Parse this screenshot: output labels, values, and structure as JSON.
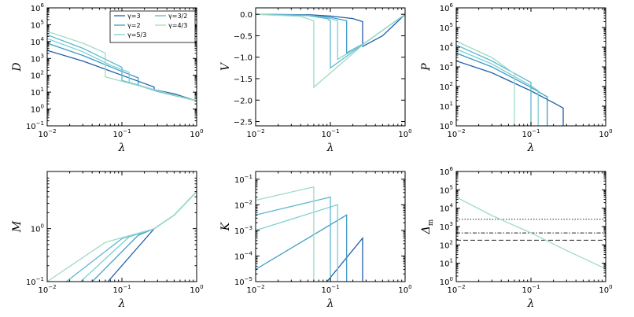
{
  "chart_data": [
    {
      "type": "line",
      "id": "D",
      "xlog": true,
      "ylog": true,
      "xlabel": "λ",
      "ylabel": "D",
      "xlim": [
        0.01,
        1
      ],
      "ylim": [
        0.1,
        1000000
      ],
      "xticks": [
        "10^-2",
        "10^-1",
        "10^0"
      ],
      "yticks": [
        "10^-1",
        "10^0",
        "10^1",
        "10^2",
        "10^3",
        "10^4",
        "10^5",
        "10^6"
      ],
      "legend": {
        "position": "top-right",
        "entries": [
          {
            "label": "γ=3",
            "color": "#1f5fa8"
          },
          {
            "label": "γ=3/2",
            "color": "#5fb7cf"
          },
          {
            "label": "γ=2",
            "color": "#3f9cc7"
          },
          {
            "label": "γ=4/3",
            "color": "#9fdcc4"
          },
          {
            "label": "γ=5/3",
            "color": "#7dcfd0"
          }
        ]
      },
      "series": [
        {
          "label": "γ=3",
          "color": "#1f5fa8",
          "x": [
            0.01,
            0.03,
            0.1,
            0.27,
            0.27,
            0.5,
            1
          ],
          "y": [
            3000,
            700,
            100,
            20,
            14,
            8,
            3
          ]
        },
        {
          "label": "γ=2",
          "color": "#3f9cc7",
          "x": [
            0.01,
            0.03,
            0.08,
            0.165,
            0.165,
            0.3,
            1
          ],
          "y": [
            8000,
            1500,
            250,
            70,
            25,
            11,
            3
          ]
        },
        {
          "label": "γ=5/3",
          "color": "#7dcfd0",
          "x": [
            0.01,
            0.03,
            0.07,
            0.125,
            0.125,
            0.3,
            1
          ],
          "y": [
            15000,
            2500,
            400,
            150,
            38,
            12,
            3
          ]
        },
        {
          "label": "γ=3/2",
          "color": "#5fb7cf",
          "x": [
            0.01,
            0.03,
            0.06,
            0.1,
            0.1,
            0.3,
            1
          ],
          "y": [
            25000,
            4000,
            900,
            300,
            50,
            12,
            3
          ]
        },
        {
          "label": "γ=4/3",
          "color": "#9fdcc4",
          "x": [
            0.01,
            0.03,
            0.055,
            0.06,
            0.06,
            0.3,
            1
          ],
          "y": [
            40000,
            8000,
            2500,
            2000,
            80,
            12,
            3
          ]
        }
      ]
    },
    {
      "type": "line",
      "id": "V",
      "xlog": true,
      "ylog": false,
      "xlabel": "λ",
      "ylabel": "V",
      "xlim": [
        0.01,
        1
      ],
      "ylim": [
        -2.6,
        0.15
      ],
      "xticks": [
        "10^-2",
        "10^-1",
        "10^0"
      ],
      "yticks": [
        "0.0",
        "−0.5",
        "−1.0",
        "−1.5",
        "−2.0",
        "−2.5"
      ],
      "series": [
        {
          "label": "γ=3",
          "color": "#1f5fa8",
          "x": [
            0.01,
            0.05,
            0.1,
            0.2,
            0.27,
            0.27,
            0.5,
            1
          ],
          "y": [
            0,
            -0.01,
            -0.04,
            -0.1,
            -0.17,
            -0.75,
            -0.5,
            0
          ]
        },
        {
          "label": "γ=2",
          "color": "#3f9cc7",
          "x": [
            0.01,
            0.05,
            0.1,
            0.165,
            0.165,
            0.3,
            1
          ],
          "y": [
            0,
            -0.02,
            -0.07,
            -0.15,
            -0.9,
            -0.65,
            0
          ]
        },
        {
          "label": "γ=5/3",
          "color": "#7dcfd0",
          "x": [
            0.01,
            0.05,
            0.1,
            0.125,
            0.125,
            0.3,
            1
          ],
          "y": [
            0,
            -0.02,
            -0.1,
            -0.15,
            -1.05,
            -0.65,
            0
          ]
        },
        {
          "label": "γ=3/2",
          "color": "#5fb7cf",
          "x": [
            0.01,
            0.05,
            0.09,
            0.1,
            0.1,
            0.3,
            1
          ],
          "y": [
            0,
            -0.03,
            -0.1,
            -0.15,
            -1.25,
            -0.65,
            0
          ]
        },
        {
          "label": "γ=4/3",
          "color": "#9fdcc4",
          "x": [
            0.01,
            0.04,
            0.06,
            0.06,
            0.3,
            1
          ],
          "y": [
            0,
            -0.05,
            -0.15,
            -1.7,
            -0.65,
            0
          ]
        }
      ]
    },
    {
      "type": "line",
      "id": "P",
      "xlog": true,
      "ylog": true,
      "xlabel": "λ",
      "ylabel": "P",
      "xlim": [
        0.01,
        1
      ],
      "ylim": [
        1,
        1000000
      ],
      "xticks": [
        "10^-2",
        "10^-1",
        "10^0"
      ],
      "yticks": [
        "10^0",
        "10^1",
        "10^2",
        "10^3",
        "10^4",
        "10^5",
        "10^6"
      ],
      "series": [
        {
          "label": "γ=3",
          "color": "#1f5fa8",
          "x": [
            0.01,
            0.03,
            0.1,
            0.2,
            0.27,
            0.27
          ],
          "y": [
            2000,
            500,
            60,
            15,
            8,
            1
          ]
        },
        {
          "label": "γ=2",
          "color": "#3f9cc7",
          "x": [
            0.01,
            0.03,
            0.1,
            0.165,
            0.165
          ],
          "y": [
            5000,
            1000,
            90,
            30,
            1
          ]
        },
        {
          "label": "γ=5/3",
          "color": "#7dcfd0",
          "x": [
            0.01,
            0.03,
            0.1,
            0.125,
            0.125
          ],
          "y": [
            8000,
            1400,
            110,
            60,
            1
          ]
        },
        {
          "label": "γ=3/2",
          "color": "#5fb7cf",
          "x": [
            0.01,
            0.03,
            0.1,
            0.1
          ],
          "y": [
            13000,
            2000,
            160,
            1
          ]
        },
        {
          "label": "γ=4/3",
          "color": "#9fdcc4",
          "x": [
            0.01,
            0.03,
            0.06,
            0.06
          ],
          "y": [
            20000,
            3000,
            450,
            1
          ]
        }
      ]
    },
    {
      "type": "line",
      "id": "M",
      "xlog": true,
      "ylog": true,
      "xlabel": "λ",
      "ylabel": "M",
      "xlim": [
        0.01,
        1
      ],
      "ylim": [
        0.1,
        12
      ],
      "xticks": [
        "10^-2",
        "10^-1",
        "10^0"
      ],
      "yticks": [
        "10^-1",
        "10^0"
      ],
      "series": [
        {
          "label": "γ=3",
          "color": "#1f5fa8",
          "x": [
            0.065,
            0.27,
            0.5,
            1
          ],
          "y": [
            0.1,
            1,
            1.8,
            5
          ]
        },
        {
          "label": "γ=2",
          "color": "#3f9cc7",
          "x": [
            0.04,
            0.165,
            0.27,
            0.5,
            1
          ],
          "y": [
            0.1,
            0.75,
            1,
            1.8,
            5
          ]
        },
        {
          "label": "γ=5/3",
          "color": "#7dcfd0",
          "x": [
            0.028,
            0.125,
            0.27,
            0.5,
            1
          ],
          "y": [
            0.1,
            0.7,
            1,
            1.8,
            5
          ]
        },
        {
          "label": "γ=3/2",
          "color": "#5fb7cf",
          "x": [
            0.018,
            0.1,
            0.27,
            0.5,
            1
          ],
          "y": [
            0.1,
            0.65,
            1,
            1.8,
            5
          ]
        },
        {
          "label": "γ=4/3",
          "color": "#9fdcc4",
          "x": [
            0.01,
            0.06,
            0.27,
            0.5,
            1
          ],
          "y": [
            0.1,
            0.55,
            1,
            1.8,
            5
          ]
        }
      ]
    },
    {
      "type": "line",
      "id": "K",
      "xlog": true,
      "ylog": true,
      "xlabel": "λ",
      "ylabel": "K",
      "xlim": [
        0.01,
        1
      ],
      "ylim": [
        1e-05,
        0.2
      ],
      "xticks": [
        "10^-2",
        "10^-1",
        "10^0"
      ],
      "yticks": [
        "10^-5",
        "10^-4",
        "10^-3",
        "10^-2",
        "10^-1"
      ],
      "series": [
        {
          "label": "γ=3",
          "color": "#1f5fa8",
          "x": [
            0.09,
            0.27,
            0.27
          ],
          "y": [
            1e-05,
            0.0005,
            1e-05
          ]
        },
        {
          "label": "γ=2",
          "color": "#3f9cc7",
          "x": [
            0.01,
            0.165,
            0.165
          ],
          "y": [
            3e-05,
            0.004,
            1e-05
          ]
        },
        {
          "label": "γ=5/3",
          "color": "#7dcfd0",
          "x": [
            0.01,
            0.125,
            0.125
          ],
          "y": [
            0.001,
            0.01,
            1e-05
          ]
        },
        {
          "label": "γ=3/2",
          "color": "#5fb7cf",
          "x": [
            0.01,
            0.1,
            0.1
          ],
          "y": [
            0.004,
            0.02,
            1e-05
          ]
        },
        {
          "label": "γ=4/3",
          "color": "#9fdcc4",
          "x": [
            0.01,
            0.06,
            0.06
          ],
          "y": [
            0.015,
            0.05,
            1e-05
          ]
        }
      ]
    },
    {
      "type": "line",
      "id": "Dm",
      "xlog": true,
      "ylog": true,
      "xlabel": "λ",
      "ylabel": "Δm",
      "xlim": [
        0.01,
        1
      ],
      "ylim": [
        1,
        1000000
      ],
      "xticks": [
        "10^-2",
        "10^-1",
        "10^0"
      ],
      "yticks": [
        "10^0",
        "10^1",
        "10^2",
        "10^3",
        "10^4",
        "10^5",
        "10^6"
      ],
      "series": [
        {
          "label": "Δm",
          "color": "#9fdcc4",
          "x": [
            0.01,
            0.03,
            0.1,
            0.3,
            1
          ],
          "y": [
            40000,
            4000,
            450,
            50,
            5
          ]
        }
      ],
      "hlines": [
        {
          "y": 2500,
          "style": "dotted"
        },
        {
          "y": 450,
          "style": "dashdot"
        },
        {
          "y": 180,
          "style": "dashed"
        }
      ]
    }
  ]
}
